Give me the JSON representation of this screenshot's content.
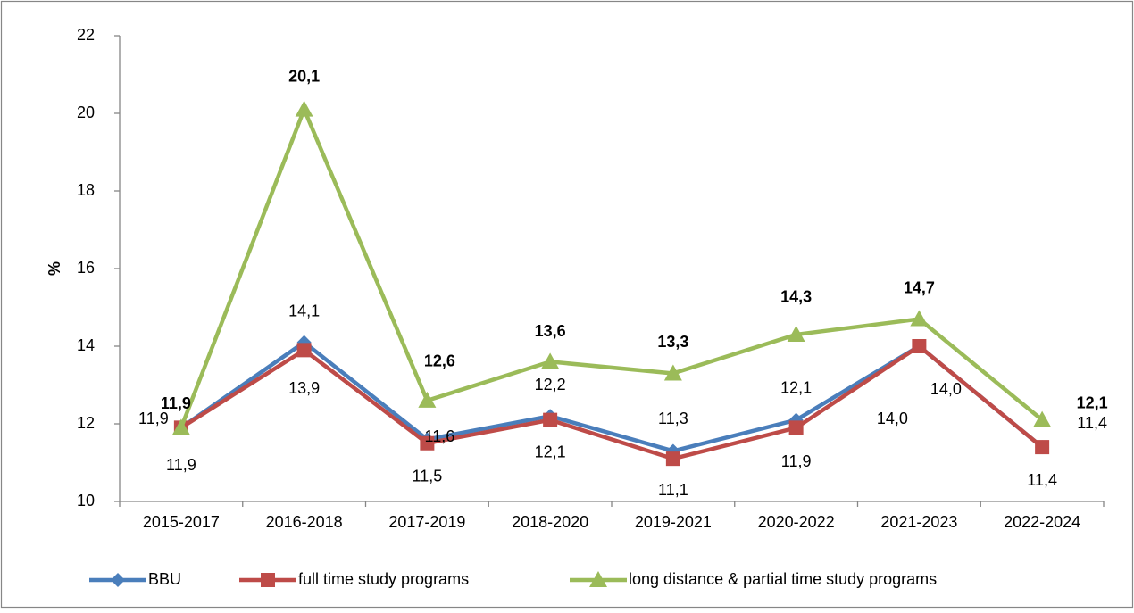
{
  "chart_data": {
    "type": "line",
    "y_label": "%",
    "categories": [
      "2015-2017",
      "2016-2018",
      "2017-2019",
      "2018-2020",
      "2019-2021",
      "2020-2022",
      "2021-2023",
      "2022-2024"
    ],
    "series": [
      {
        "name": "BBU",
        "color": "#4a7ebb",
        "label_color": "#2e75b6",
        "marker": "diamond",
        "values": [
          11.9,
          14.1,
          11.6,
          12.2,
          11.3,
          12.1,
          14.0,
          11.4
        ],
        "value_labels": [
          "11,9",
          "14,1",
          "11,6",
          "12,2",
          "11,3",
          "12,1",
          "14,0",
          "11,4"
        ]
      },
      {
        "name": "full time study programs",
        "color": "#be4b48",
        "label_color": "#c00000",
        "marker": "square",
        "values": [
          11.9,
          13.9,
          11.5,
          12.1,
          11.1,
          11.9,
          14.0,
          11.4
        ],
        "value_labels": [
          "11,9",
          "13,9",
          "11,5",
          "12,1",
          "11,1",
          "11,9",
          "14,0",
          "11,4"
        ]
      },
      {
        "name": "long distance & partial time study programs",
        "color": "#9bbb59",
        "label_color": "#92d050",
        "marker": "triangle",
        "values": [
          11.9,
          20.1,
          12.6,
          13.6,
          13.3,
          14.3,
          14.7,
          12.1
        ],
        "value_labels": [
          "11,9",
          "20,1",
          "12,6",
          "13,6",
          "13,3",
          "14,3",
          "14,7",
          "12,1"
        ]
      }
    ],
    "ylim": [
      10,
      22
    ],
    "yticks": [
      10,
      12,
      14,
      16,
      18,
      20,
      22
    ],
    "grid": false,
    "legend": "bottom"
  }
}
